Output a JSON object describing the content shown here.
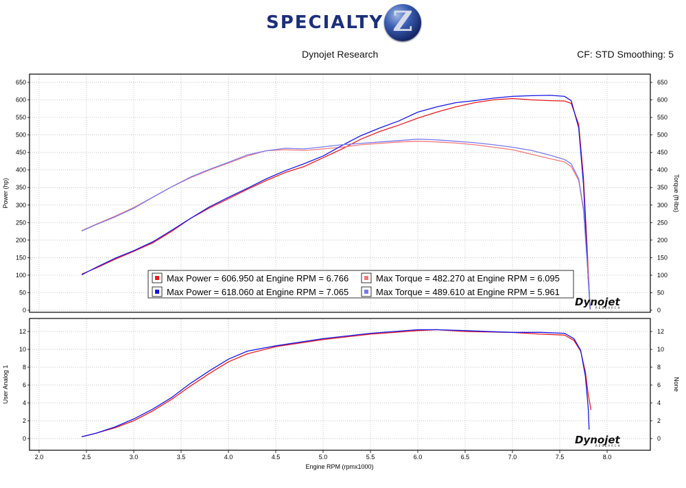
{
  "logo": {
    "text": "SPECIALTY",
    "badge": "Z"
  },
  "header": {
    "left": "Dynojet Research",
    "right": "CF: STD Smoothing: 5"
  },
  "colors": {
    "run1_power": "#e8191f",
    "run1_torque": "#f27878",
    "run2_power": "#1414e6",
    "run2_torque": "#7878f0",
    "grid": "#aaaaaa"
  },
  "watermark": {
    "text": "Dynojet",
    "sub": "RESEARCH"
  },
  "chart_data": [
    {
      "type": "line",
      "xlabel": "Engine RPM (rpmx1000)",
      "ylabel": "Power (hp)",
      "y2label": "Torque (ft-lbs)",
      "xlim": [
        1.9,
        8.4
      ],
      "ylim": [
        0,
        660
      ],
      "xticks": [
        "2.0",
        "2.5",
        "3.0",
        "3.5",
        "4.0",
        "4.5",
        "5.0",
        "5.5",
        "6.0",
        "6.5",
        "7.0",
        "7.5",
        "8.0"
      ],
      "yticks": [
        "0",
        "50",
        "100",
        "150",
        "200",
        "250",
        "300",
        "350",
        "400",
        "450",
        "500",
        "550",
        "600",
        "650"
      ],
      "grid": true,
      "legend_position": "bottom-center",
      "legend": [
        "Max Power = 606.950 at Engine RPM = 6.766",
        "Max Torque = 482.270 at Engine RPM = 6.095",
        "Max Power = 618.060 at Engine RPM = 7.065",
        "Max Torque = 489.610 at Engine RPM = 5.961"
      ],
      "series": [
        {
          "color": "#e8191f",
          "x": [
            2.45,
            2.6,
            2.8,
            3.0,
            3.2,
            3.4,
            3.6,
            3.8,
            4.0,
            4.2,
            4.4,
            4.6,
            4.8,
            5.0,
            5.2,
            5.4,
            5.6,
            5.8,
            6.0,
            6.2,
            6.4,
            6.6,
            6.8,
            7.0,
            7.2,
            7.4,
            7.55,
            7.62,
            7.7,
            7.75,
            7.8,
            7.82
          ],
          "y": [
            103,
            120,
            145,
            168,
            192,
            225,
            262,
            292,
            318,
            345,
            370,
            393,
            410,
            435,
            460,
            488,
            510,
            528,
            548,
            565,
            580,
            592,
            600,
            604,
            600,
            598,
            597,
            590,
            530,
            380,
            120,
            5
          ]
        },
        {
          "color": "#f27878",
          "x": [
            2.45,
            2.6,
            2.8,
            3.0,
            3.2,
            3.4,
            3.6,
            3.8,
            4.0,
            4.2,
            4.4,
            4.6,
            4.8,
            5.0,
            5.2,
            5.4,
            5.6,
            5.8,
            6.0,
            6.2,
            6.4,
            6.6,
            6.8,
            7.0,
            7.2,
            7.4,
            7.55,
            7.62,
            7.7,
            7.75,
            7.8,
            7.82
          ],
          "y": [
            227,
            245,
            268,
            293,
            322,
            352,
            378,
            400,
            420,
            440,
            455,
            458,
            456,
            460,
            465,
            472,
            476,
            480,
            482,
            480,
            477,
            472,
            465,
            458,
            445,
            432,
            423,
            410,
            370,
            285,
            120,
            10
          ]
        },
        {
          "color": "#1414e6",
          "x": [
            2.45,
            2.6,
            2.8,
            3.0,
            3.2,
            3.4,
            3.6,
            3.8,
            4.0,
            4.2,
            4.4,
            4.6,
            4.8,
            5.0,
            5.2,
            5.4,
            5.6,
            5.8,
            6.0,
            6.2,
            6.4,
            6.6,
            6.8,
            7.0,
            7.2,
            7.4,
            7.55,
            7.62,
            7.7,
            7.75,
            7.8,
            7.82
          ],
          "y": [
            101,
            122,
            148,
            170,
            195,
            228,
            262,
            295,
            322,
            348,
            375,
            398,
            418,
            440,
            470,
            498,
            520,
            540,
            565,
            580,
            592,
            598,
            605,
            610,
            612,
            613,
            610,
            598,
            520,
            360,
            90,
            3
          ]
        },
        {
          "color": "#7878f0",
          "x": [
            2.45,
            2.6,
            2.8,
            3.0,
            3.2,
            3.4,
            3.6,
            3.8,
            4.0,
            4.2,
            4.4,
            4.6,
            4.8,
            5.0,
            5.2,
            5.4,
            5.6,
            5.8,
            6.0,
            6.2,
            6.4,
            6.6,
            6.8,
            7.0,
            7.2,
            7.4,
            7.55,
            7.62,
            7.7,
            7.75,
            7.8,
            7.82
          ],
          "y": [
            226,
            244,
            266,
            291,
            322,
            352,
            380,
            402,
            422,
            443,
            455,
            462,
            460,
            466,
            472,
            476,
            480,
            484,
            488,
            486,
            482,
            478,
            472,
            465,
            456,
            442,
            430,
            418,
            375,
            290,
            95,
            5
          ]
        }
      ]
    },
    {
      "type": "line",
      "xlabel": "Engine RPM (rpmx1000)",
      "ylabel": "User Analog 1",
      "y2label": "None",
      "xlim": [
        1.9,
        8.4
      ],
      "ylim": [
        -1,
        13
      ],
      "yticks": [
        "0",
        "2",
        "4",
        "6",
        "8",
        "10",
        "12"
      ],
      "grid": true,
      "series": [
        {
          "color": "#e8191f",
          "x": [
            2.45,
            2.6,
            2.8,
            3.0,
            3.2,
            3.4,
            3.6,
            3.8,
            4.0,
            4.2,
            4.5,
            5.0,
            5.5,
            6.0,
            6.2,
            6.5,
            7.0,
            7.3,
            7.55,
            7.65,
            7.72,
            7.77,
            7.8,
            7.83
          ],
          "y": [
            0.2,
            0.6,
            1.2,
            2.0,
            3.1,
            4.4,
            5.9,
            7.3,
            8.6,
            9.5,
            10.3,
            11.1,
            11.7,
            12.1,
            12.2,
            12.0,
            11.9,
            11.7,
            11.6,
            11.0,
            9.8,
            7.5,
            5.0,
            3.2
          ]
        },
        {
          "color": "#1414e6",
          "x": [
            2.45,
            2.6,
            2.8,
            3.0,
            3.2,
            3.4,
            3.6,
            3.8,
            4.0,
            4.2,
            4.5,
            5.0,
            5.5,
            6.0,
            6.2,
            6.5,
            7.0,
            7.3,
            7.55,
            7.65,
            7.72,
            7.77,
            7.8,
            7.81
          ],
          "y": [
            0.2,
            0.6,
            1.3,
            2.2,
            3.3,
            4.6,
            6.2,
            7.6,
            8.9,
            9.8,
            10.4,
            11.2,
            11.8,
            12.2,
            12.2,
            12.1,
            11.9,
            11.9,
            11.8,
            11.2,
            9.9,
            7.0,
            3.5,
            1.0
          ]
        }
      ]
    }
  ]
}
